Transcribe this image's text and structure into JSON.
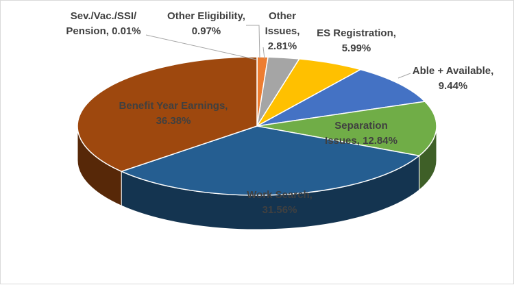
{
  "chart_data": {
    "type": "pie",
    "style": "3d",
    "slices": [
      {
        "label": "Sev./Vac./SSI/ Pension",
        "label_lines": [
          "Sev./Vac./SSI/",
          "Pension, 0.01%"
        ],
        "value": 0.01,
        "color": "#c55a11"
      },
      {
        "label": "Other Eligibility",
        "label_lines": [
          "Other Eligibility,",
          "0.97%"
        ],
        "value": 0.97,
        "color": "#ed7d31"
      },
      {
        "label": "Other Issues",
        "label_lines": [
          "Other",
          "Issues,",
          "2.81%"
        ],
        "value": 2.81,
        "color": "#a5a5a5"
      },
      {
        "label": "ES Registration",
        "label_lines": [
          "ES Registration,",
          "5.99%"
        ],
        "value": 5.99,
        "color": "#ffc000"
      },
      {
        "label": "Able + Available",
        "label_lines": [
          "Able + Available,",
          "9.44%"
        ],
        "value": 9.44,
        "color": "#4472c4"
      },
      {
        "label": "Separation Issues",
        "label_lines": [
          "Separation",
          "Issues, 12.84%"
        ],
        "value": 12.84,
        "color": "#70ad47"
      },
      {
        "label": "Work Search",
        "label_lines": [
          "Work Search,",
          "31.56%"
        ],
        "value": 31.56,
        "color": "#255e91"
      },
      {
        "label": "Benefit Year Earnings",
        "label_lines": [
          "Benefit Year Earnings,",
          "36.38%"
        ],
        "value": 36.38,
        "color": "#9e480e"
      }
    ],
    "legend": "none",
    "title": ""
  }
}
